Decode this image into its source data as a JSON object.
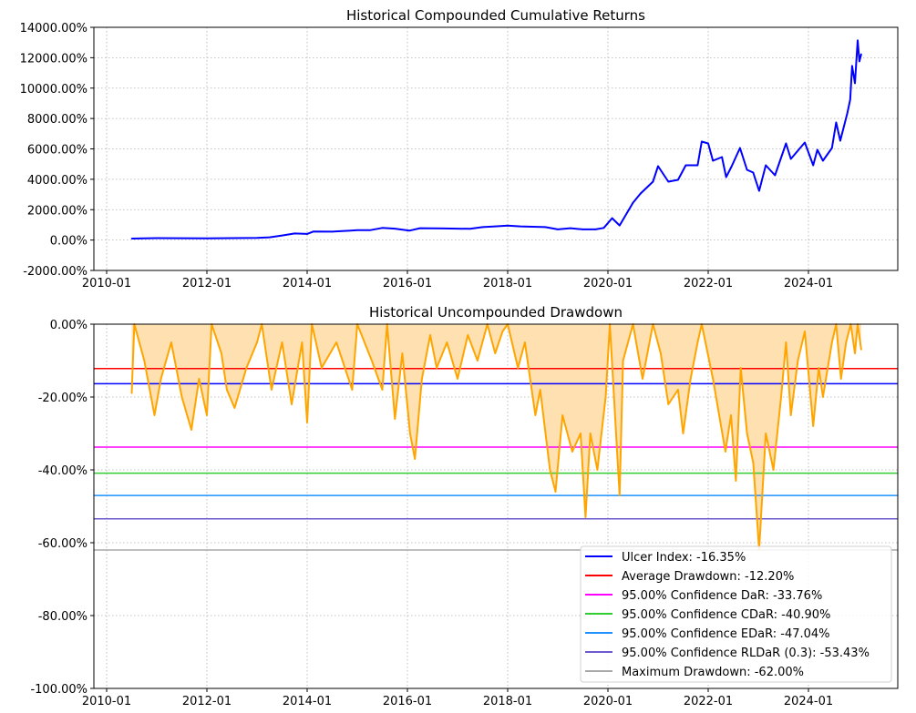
{
  "chart_data": [
    {
      "type": "line",
      "title": "Historical Compounded Cumulative Returns",
      "xlabel": "",
      "ylabel": "",
      "ylim": [
        -2000,
        14000
      ],
      "yticks": [
        "-2000.00%",
        "0.00%",
        "2000.00%",
        "4000.00%",
        "6000.00%",
        "8000.00%",
        "10000.00%",
        "12000.00%",
        "14000.00%"
      ],
      "ytick_values": [
        -2000,
        0,
        2000,
        4000,
        6000,
        8000,
        10000,
        12000,
        14000
      ],
      "xticks": [
        "2010-01",
        "2012-01",
        "2014-01",
        "2016-01",
        "2018-01",
        "2020-01",
        "2022-01",
        "2024-01"
      ],
      "grid": true,
      "color": "#0000ff",
      "series": [
        {
          "x": [
            "2010-07-01",
            "2011-01-01",
            "2011-07-01",
            "2012-01-01",
            "2012-07-01",
            "2013-01-01",
            "2013-04-01",
            "2013-07-01",
            "2013-10-01",
            "2014-01-01",
            "2014-02-15",
            "2014-07-01",
            "2015-01-01",
            "2015-04-01",
            "2015-07-01",
            "2015-10-01",
            "2016-01-15",
            "2016-04-01",
            "2016-10-01",
            "2017-04-01",
            "2017-07-01",
            "2017-10-01",
            "2018-01-01",
            "2018-04-01",
            "2018-10-01",
            "2019-01-01",
            "2019-04-01",
            "2019-07-01",
            "2019-10-01",
            "2019-12-01",
            "2020-02-01",
            "2020-03-25",
            "2020-07-01",
            "2020-08-25",
            "2020-11-25",
            "2021-01-01",
            "2021-03-15",
            "2021-05-25",
            "2021-07-20",
            "2021-10-15",
            "2021-11-15",
            "2022-01-01",
            "2022-02-05",
            "2022-04-10",
            "2022-05-10",
            "2022-06-20",
            "2022-08-20",
            "2022-10-10",
            "2022-11-25",
            "2023-01-07",
            "2023-02-25",
            "2023-05-01",
            "2023-07-20",
            "2023-08-25",
            "2023-12-05",
            "2024-02-05",
            "2024-03-05",
            "2024-04-15",
            "2024-06-20",
            "2024-07-20",
            "2024-08-20",
            "2024-10-10",
            "2024-11-01",
            "2024-11-15",
            "2024-12-05",
            "2024-12-25",
            "2025-01-07",
            "2025-01-20"
          ],
          "y": [
            100,
            130,
            120,
            110,
            130,
            140,
            180,
            300,
            430,
            400,
            560,
            550,
            650,
            650,
            800,
            750,
            620,
            780,
            760,
            740,
            850,
            900,
            950,
            900,
            850,
            700,
            780,
            700,
            700,
            800,
            1440,
            960,
            2460,
            3060,
            3840,
            4860,
            3840,
            3960,
            4920,
            4920,
            6480,
            6360,
            5220,
            5460,
            4140,
            4860,
            6060,
            4620,
            4440,
            3240,
            4920,
            4260,
            6360,
            5340,
            6420,
            4920,
            5940,
            5220,
            6060,
            7740,
            6540,
            8340,
            9240,
            11460,
            10320,
            13140,
            11760,
            12240
          ]
        }
      ]
    },
    {
      "type": "area",
      "title": "Historical Uncompounded Drawdown",
      "xlabel": "",
      "ylabel": "",
      "ylim": [
        -100,
        0
      ],
      "yticks": [
        "-100.00%",
        "-80.00%",
        "-60.00%",
        "-40.00%",
        "-20.00%",
        "0.00%"
      ],
      "ytick_values": [
        -100,
        -80,
        -60,
        -40,
        -20,
        0
      ],
      "xticks": [
        "2010-01",
        "2012-01",
        "2014-01",
        "2016-01",
        "2018-01",
        "2020-01",
        "2022-01",
        "2024-01"
      ],
      "grid": true,
      "color": "#ffa500",
      "fill_color": "#ffe0b0",
      "series": [
        {
          "x": [
            "2010-07-01",
            "2010-07-20",
            "2010-10-01",
            "2010-12-15",
            "2011-02-01",
            "2011-04-15",
            "2011-07-01",
            "2011-09-10",
            "2011-11-05",
            "2012-01-01",
            "2012-02-05",
            "2012-04-15",
            "2012-05-25",
            "2012-07-20",
            "2012-10-15",
            "2013-01-01",
            "2013-02-05",
            "2013-04-15",
            "2013-07-01",
            "2013-09-10",
            "2013-11-25",
            "2014-01-01",
            "2014-02-05",
            "2014-04-15",
            "2014-08-01",
            "2014-11-25",
            "2015-01-01",
            "2015-04-15",
            "2015-07-01",
            "2015-08-05",
            "2015-10-01",
            "2015-11-25",
            "2016-01-20",
            "2016-02-25",
            "2016-04-15",
            "2016-06-15",
            "2016-08-01",
            "2016-10-15",
            "2017-01-01",
            "2017-03-15",
            "2017-05-25",
            "2017-08-05",
            "2017-10-01",
            "2017-11-25",
            "2018-01-01",
            "2018-03-15",
            "2018-05-05",
            "2018-07-20",
            "2018-08-25",
            "2018-11-05",
            "2018-12-15",
            "2019-02-05",
            "2019-04-15",
            "2019-06-15",
            "2019-07-20",
            "2019-08-25",
            "2019-10-15",
            "2019-12-15",
            "2020-01-15",
            "2020-03-25",
            "2020-04-20",
            "2020-07-01",
            "2020-09-10",
            "2020-11-25",
            "2021-01-20",
            "2021-03-15",
            "2021-05-25",
            "2021-07-01",
            "2021-08-25",
            "2021-10-15",
            "2021-11-15",
            "2022-02-05",
            "2022-05-05",
            "2022-06-15",
            "2022-07-20",
            "2022-08-25",
            "2022-10-10",
            "2022-11-25",
            "2023-01-07",
            "2023-02-25",
            "2023-04-20",
            "2023-06-15",
            "2023-07-20",
            "2023-08-25",
            "2023-10-15",
            "2023-12-05",
            "2024-02-05",
            "2024-03-15",
            "2024-04-15",
            "2024-06-20",
            "2024-07-20",
            "2024-08-25",
            "2024-10-01",
            "2024-11-05",
            "2024-12-05",
            "2024-12-25",
            "2025-01-20"
          ],
          "y": [
            -19,
            0,
            -10,
            -25,
            -15,
            -5,
            -20,
            -29,
            -15,
            -25,
            0,
            -8,
            -18,
            -23,
            -12,
            -5,
            0,
            -18,
            -5,
            -22,
            -5,
            -27,
            0,
            -12,
            -5,
            -18,
            0,
            -10,
            -18,
            0,
            -26,
            -8,
            -30,
            -37,
            -15,
            -3,
            -12,
            -5,
            -15,
            -3,
            -10,
            0,
            -8,
            -2,
            0,
            -12,
            -5,
            -25,
            -18,
            -40,
            -46,
            -25,
            -35,
            -30,
            -53,
            -30,
            -40,
            -20,
            0,
            -47,
            -10,
            0,
            -15,
            0,
            -8,
            -22,
            -18,
            -30,
            -15,
            -5,
            0,
            -15,
            -35,
            -25,
            -43,
            -12,
            -30,
            -38,
            -62,
            -30,
            -40,
            -20,
            -5,
            -25,
            -10,
            -2,
            -28,
            -12,
            -20,
            -5,
            0,
            -15,
            -5,
            0,
            -8,
            0,
            -7
          ]
        }
      ],
      "hlines": [
        {
          "label": "Ulcer Index: -16.35%",
          "value": -16.35,
          "color": "#0000ff"
        },
        {
          "label": "Average Drawdown: -12.20%",
          "value": -12.2,
          "color": "#ff0000"
        },
        {
          "label": "95.00% Confidence DaR: -33.76%",
          "value": -33.76,
          "color": "#ff00ff"
        },
        {
          "label": "95.00% Confidence CDaR: -40.90%",
          "value": -40.9,
          "color": "#32cd32"
        },
        {
          "label": "95.00% Confidence EDaR: -47.04%",
          "value": -47.04,
          "color": "#1e90ff"
        },
        {
          "label": "95.00% Confidence RLDaR (0.3): -53.43%",
          "value": -53.43,
          "color": "#6a5acd"
        },
        {
          "label": "Maximum Drawdown: -62.00%",
          "value": -62.0,
          "color": "#a9a9a9"
        }
      ],
      "legend": "bottom-right"
    }
  ]
}
